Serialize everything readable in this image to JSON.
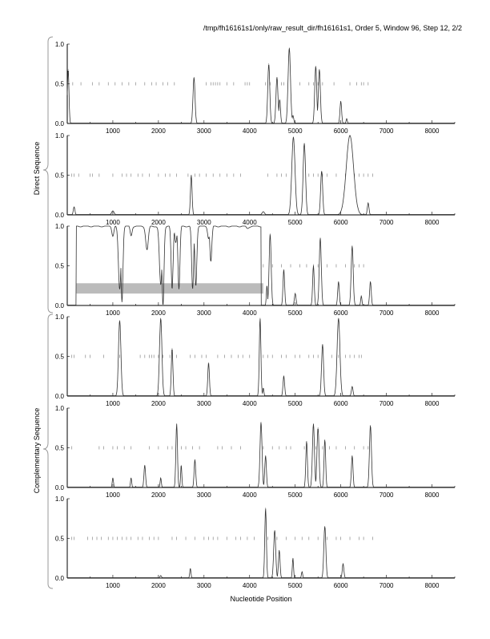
{
  "chart_data": {
    "type": "line",
    "title": "/tmp/fh16161s1/only/raw_result_dir/fh16161s1, Order 5, Window 96, Step 12, 2/2",
    "xlabel": "Nucleotide Position",
    "group_labels": [
      "Direct Sequence",
      "Complementary Sequence"
    ],
    "xlim": [
      0,
      8500
    ],
    "ylim": [
      0,
      1
    ],
    "xticks": [
      1000,
      2000,
      3000,
      4000,
      5000,
      6000,
      7000,
      8000
    ],
    "yticks": [
      "0.0",
      "0.5",
      "1.0"
    ],
    "panels": [
      {
        "name": "direct-frame-1",
        "peaks": [
          [
            20,
            0.68,
            40
          ],
          [
            2780,
            0.58,
            50
          ],
          [
            4420,
            0.75,
            50
          ],
          [
            4600,
            0.58,
            50
          ],
          [
            4660,
            0.3,
            40
          ],
          [
            4870,
            0.95,
            60
          ],
          [
            4950,
            0.1,
            40
          ],
          [
            5450,
            0.72,
            50
          ],
          [
            5530,
            0.68,
            50
          ],
          [
            6000,
            0.28,
            40
          ],
          [
            6130,
            0.06,
            30
          ]
        ],
        "marks": [
          120,
          300,
          550,
          700,
          900,
          1050,
          1200,
          1350,
          1500,
          1700,
          1850,
          1950,
          2100,
          2200,
          2350,
          3050,
          3150,
          3200,
          3250,
          3300,
          3350,
          3500,
          3650,
          3900,
          3950,
          4000,
          4350,
          4450,
          4700,
          4750,
          5100,
          5300,
          5400,
          5500,
          5600,
          5850,
          6200,
          6350,
          6450,
          6500,
          6600
        ]
      },
      {
        "name": "direct-frame-2",
        "peaks": [
          [
            150,
            0.1,
            40
          ],
          [
            1000,
            0.05,
            60
          ],
          [
            2720,
            0.5,
            40
          ],
          [
            4300,
            0.04,
            60
          ],
          [
            4960,
            0.98,
            80
          ],
          [
            5200,
            0.9,
            60
          ],
          [
            5580,
            0.55,
            50
          ],
          [
            6200,
            1.0,
            180
          ],
          [
            6600,
            0.15,
            40
          ]
        ],
        "marks": [
          100,
          150,
          250,
          500,
          550,
          700,
          1000,
          1200,
          1300,
          1400,
          1550,
          1650,
          1800,
          2000,
          2150,
          2250,
          2400,
          2650,
          2800,
          2900,
          3050,
          3200,
          3350,
          3500,
          3650,
          3800,
          4400,
          4600,
          4700,
          4800,
          5300,
          5400,
          5500,
          5600,
          5700,
          5900,
          6100,
          6300,
          6400,
          6500,
          6600,
          6700
        ]
      },
      {
        "name": "direct-frame-3",
        "curve_range": [
          200,
          4250
        ],
        "dips": [
          [
            1000,
            0.88,
            30
          ],
          [
            1150,
            0.2,
            40
          ],
          [
            1200,
            0.05,
            30
          ],
          [
            1400,
            0.88,
            30
          ],
          [
            1750,
            0.7,
            40
          ],
          [
            2000,
            0.95,
            30
          ],
          [
            2050,
            0.25,
            40
          ],
          [
            2100,
            0.0,
            30
          ],
          [
            2300,
            0.2,
            30
          ],
          [
            2380,
            0.8,
            30
          ],
          [
            2450,
            0.2,
            30
          ],
          [
            2750,
            0.2,
            30
          ],
          [
            2820,
            0.25,
            30
          ],
          [
            3100,
            0.85,
            30
          ],
          [
            3150,
            0.55,
            30
          ],
          [
            3950,
            0.97,
            40
          ]
        ],
        "peaks": [
          [
            4380,
            0.25,
            30
          ],
          [
            4450,
            0.9,
            50
          ],
          [
            4750,
            0.45,
            40
          ],
          [
            5000,
            0.15,
            40
          ],
          [
            5400,
            0.5,
            40
          ],
          [
            5550,
            0.85,
            50
          ],
          [
            5950,
            0.3,
            40
          ],
          [
            6250,
            0.75,
            50
          ],
          [
            6450,
            0.12,
            30
          ],
          [
            6650,
            0.3,
            40
          ]
        ],
        "band": [
          200,
          4300,
          0.15,
          0.28
        ],
        "marks": [
          4300,
          4500,
          4700,
          4900,
          5100,
          5250,
          5400,
          5500,
          5700,
          5900,
          6100,
          6300,
          6400,
          6500
        ]
      },
      {
        "name": "complementary-frame-1",
        "peaks": [
          [
            1150,
            0.95,
            60
          ],
          [
            2050,
            0.98,
            60
          ],
          [
            2300,
            0.6,
            40
          ],
          [
            3100,
            0.42,
            40
          ],
          [
            4230,
            0.98,
            40
          ],
          [
            4300,
            0.1,
            30
          ],
          [
            4750,
            0.25,
            40
          ],
          [
            5600,
            0.65,
            50
          ],
          [
            5950,
            0.98,
            70
          ],
          [
            6250,
            0.12,
            40
          ]
        ],
        "marks": [
          100,
          150,
          400,
          500,
          800,
          1150,
          1600,
          1700,
          1800,
          1850,
          1900,
          2000,
          2100,
          2250,
          2400,
          2700,
          2800,
          2950,
          3050,
          3300,
          3450,
          3600,
          3750,
          3850,
          4000,
          4300,
          4400,
          4500,
          4700,
          4800,
          5000,
          5100,
          5300,
          5400,
          5500,
          5800,
          5950,
          6100,
          6200,
          6300,
          6400,
          6450
        ]
      },
      {
        "name": "complementary-frame-2",
        "peaks": [
          [
            1000,
            0.12,
            30
          ],
          [
            1400,
            0.12,
            30
          ],
          [
            1700,
            0.28,
            40
          ],
          [
            2050,
            0.12,
            30
          ],
          [
            2400,
            0.8,
            40
          ],
          [
            2500,
            0.28,
            30
          ],
          [
            2800,
            0.35,
            40
          ],
          [
            4250,
            0.82,
            50
          ],
          [
            4350,
            0.4,
            40
          ],
          [
            5250,
            0.58,
            40
          ],
          [
            5400,
            0.8,
            50
          ],
          [
            5500,
            0.75,
            50
          ],
          [
            5650,
            0.6,
            40
          ],
          [
            6250,
            0.4,
            40
          ],
          [
            6650,
            0.78,
            50
          ]
        ],
        "marks": [
          100,
          700,
          800,
          1000,
          1100,
          1250,
          1400,
          1800,
          2000,
          2200,
          2300,
          2500,
          2600,
          2750,
          2900,
          3300,
          3400,
          3600,
          3800,
          4300,
          4500,
          4650,
          4800,
          4900,
          5200,
          5450,
          5600,
          5750,
          5900,
          6100,
          6300,
          6500,
          6600
        ]
      },
      {
        "name": "complementary-frame-3",
        "peaks": [
          [
            2050,
            0.03,
            40
          ],
          [
            2700,
            0.12,
            30
          ],
          [
            4350,
            0.88,
            40
          ],
          [
            4550,
            0.6,
            50
          ],
          [
            4650,
            0.35,
            40
          ],
          [
            4950,
            0.25,
            30
          ],
          [
            5150,
            0.08,
            30
          ],
          [
            5650,
            0.65,
            50
          ],
          [
            6050,
            0.18,
            40
          ]
        ],
        "marks": [
          100,
          150,
          450,
          550,
          650,
          750,
          900,
          1000,
          1100,
          1200,
          1300,
          1400,
          1550,
          1650,
          1800,
          1900,
          2000,
          2300,
          2400,
          2600,
          2800,
          3000,
          3100,
          3200,
          3300,
          3500,
          3700,
          3800,
          3950,
          4100,
          4400,
          4600,
          4800,
          5000,
          5150,
          5300,
          5500,
          5700,
          5900,
          6000,
          6200,
          6400,
          6500,
          6700
        ]
      }
    ]
  }
}
